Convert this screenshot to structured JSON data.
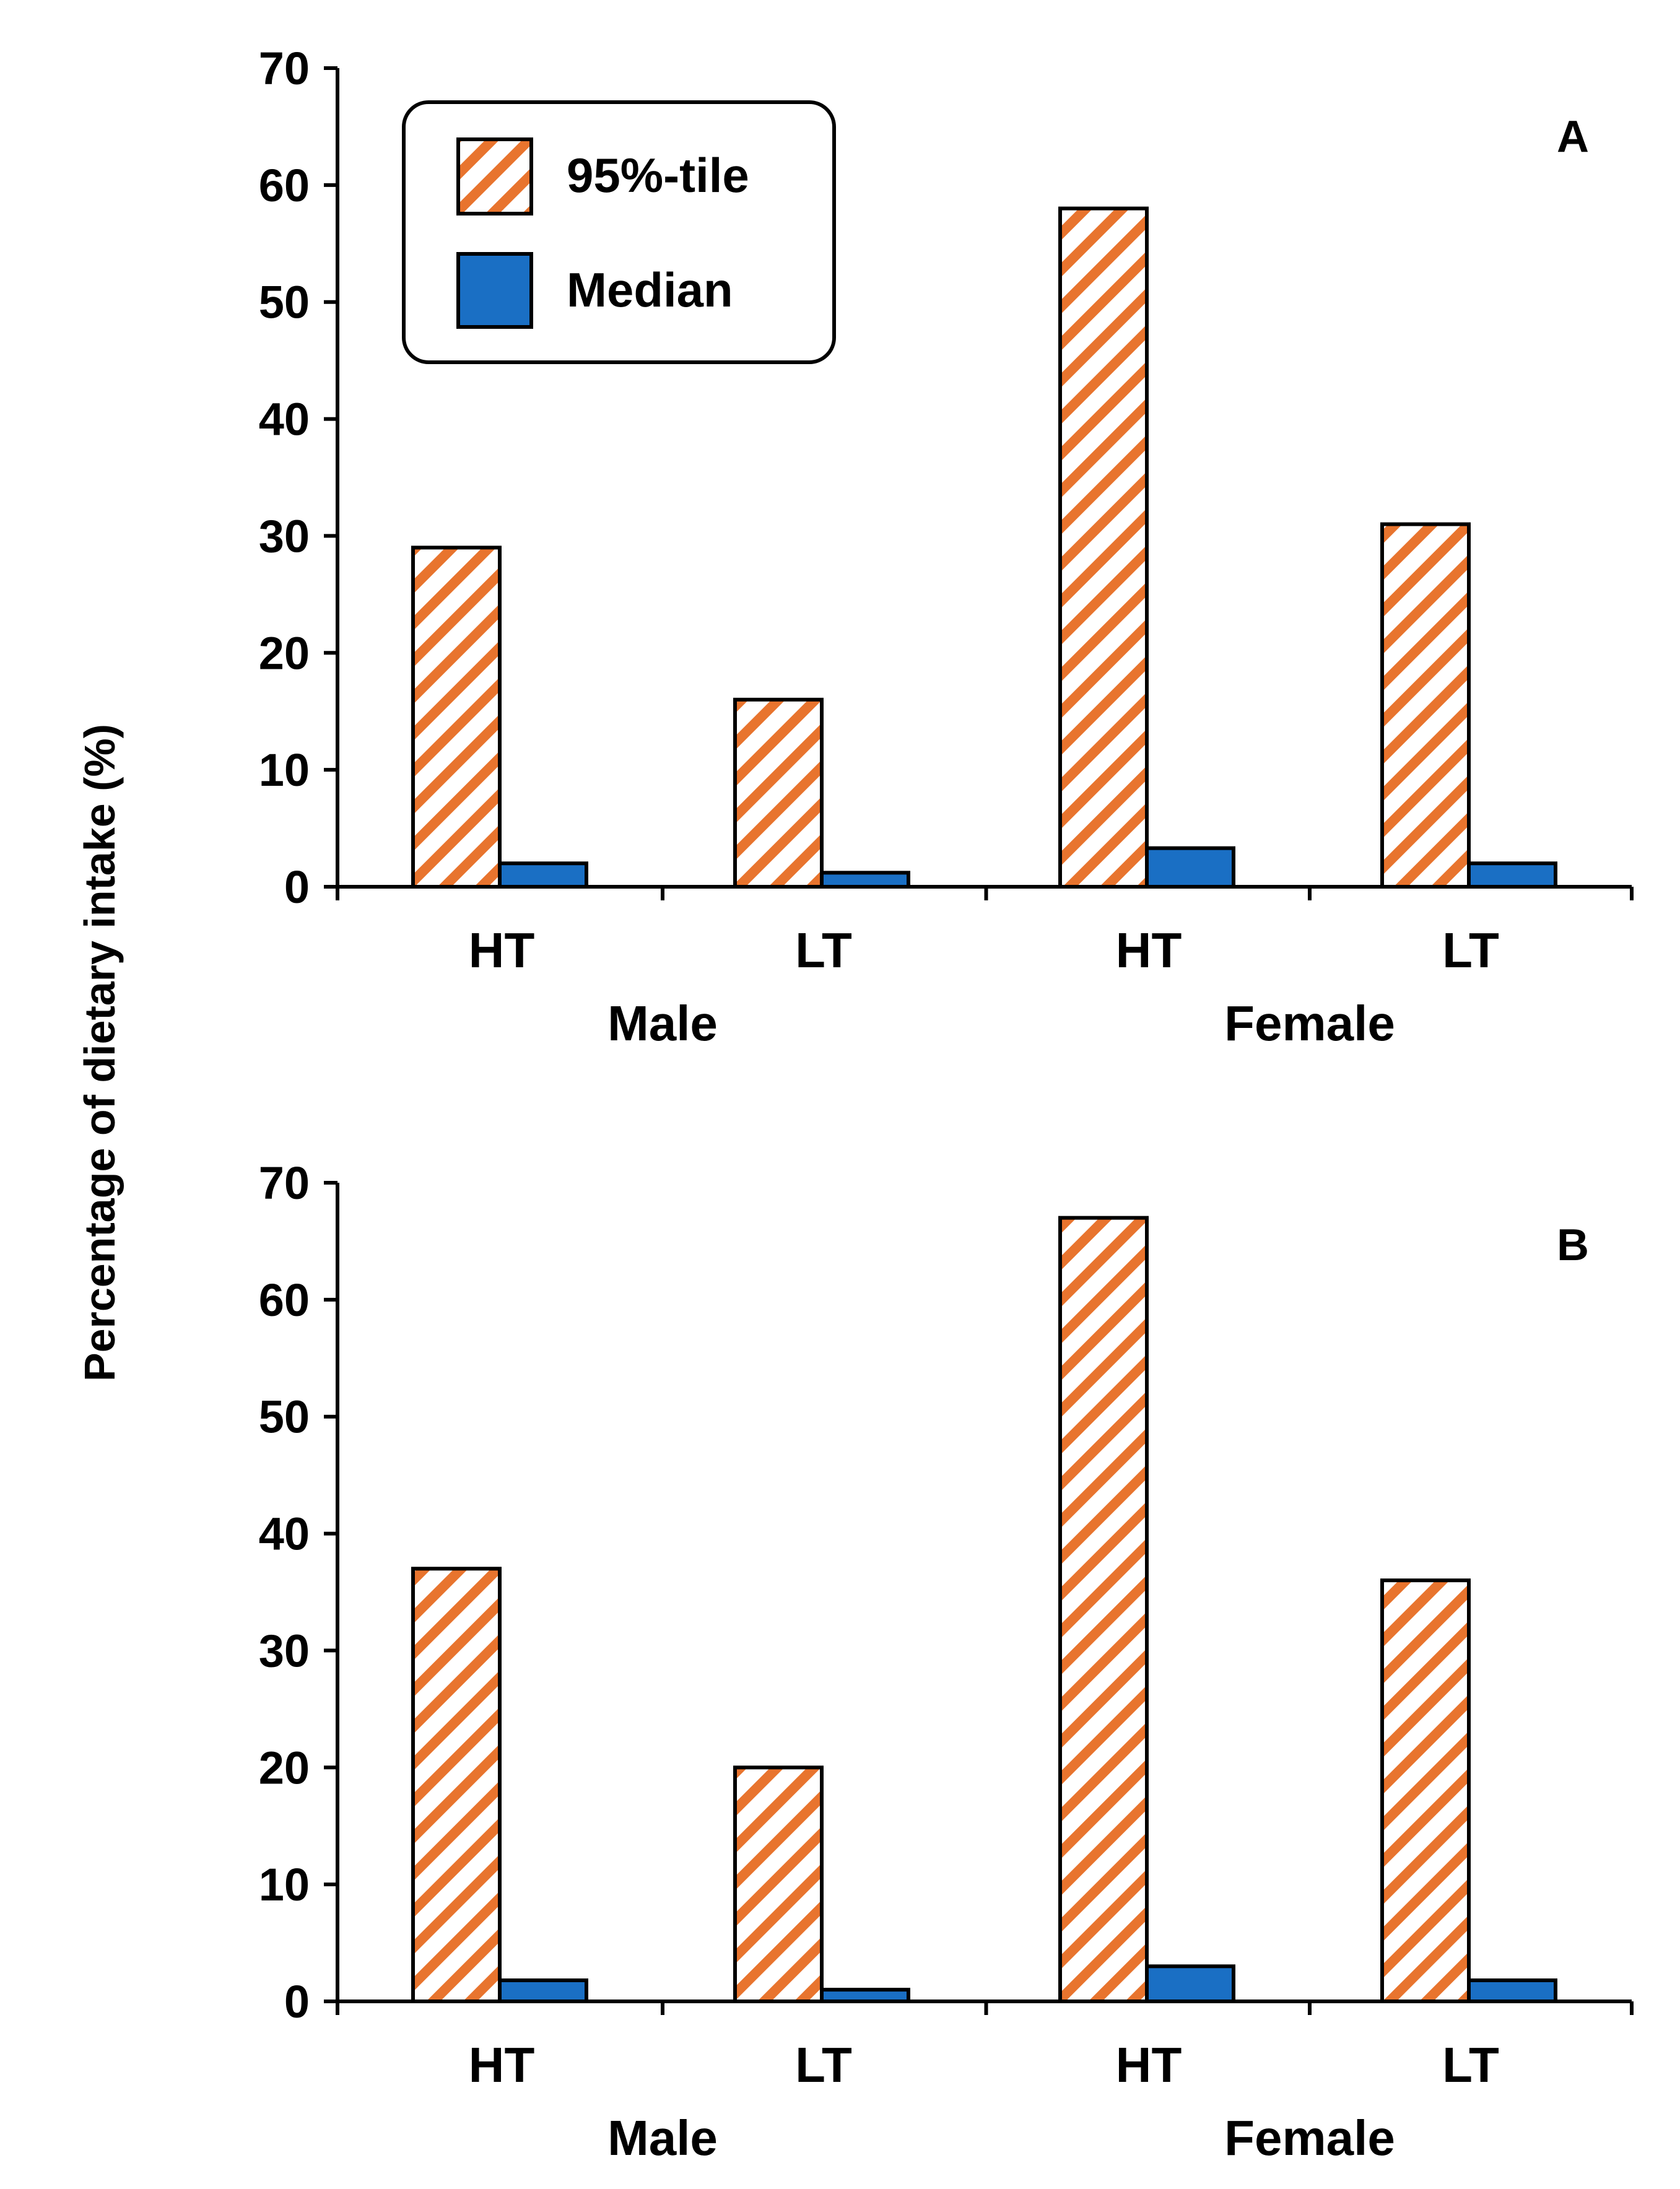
{
  "figure": {
    "ylabel": "Percentage of dietary intake (%)"
  },
  "colors": {
    "hatch_stroke": "#e8742e",
    "median_fill": "#1a6fc4",
    "axis": "#000000"
  },
  "legend": {
    "items": [
      {
        "label": "95%-tile",
        "style": "hatched"
      },
      {
        "label": "Median",
        "style": "solid"
      }
    ]
  },
  "chart_data": [
    {
      "type": "bar",
      "panel_label": "A",
      "ylim": [
        0,
        70
      ],
      "yticks": [
        "0",
        "10",
        "20",
        "30",
        "40",
        "50",
        "60",
        "70"
      ],
      "categories": [
        "HT",
        "LT",
        "HT",
        "LT"
      ],
      "groups": [
        "Male",
        "Female"
      ],
      "series": [
        {
          "name": "95%-tile",
          "values": [
            29,
            16,
            58,
            31
          ]
        },
        {
          "name": "Median",
          "values": [
            2,
            1.2,
            3.3,
            2
          ]
        }
      ]
    },
    {
      "type": "bar",
      "panel_label": "B",
      "ylim": [
        0,
        70
      ],
      "yticks": [
        "0",
        "10",
        "20",
        "30",
        "40",
        "50",
        "60",
        "70"
      ],
      "categories": [
        "HT",
        "LT",
        "HT",
        "LT"
      ],
      "groups": [
        "Male",
        "Female"
      ],
      "series": [
        {
          "name": "95%-tile",
          "values": [
            37,
            20,
            67,
            36
          ]
        },
        {
          "name": "Median",
          "values": [
            1.8,
            1,
            3,
            1.8
          ]
        }
      ]
    }
  ]
}
